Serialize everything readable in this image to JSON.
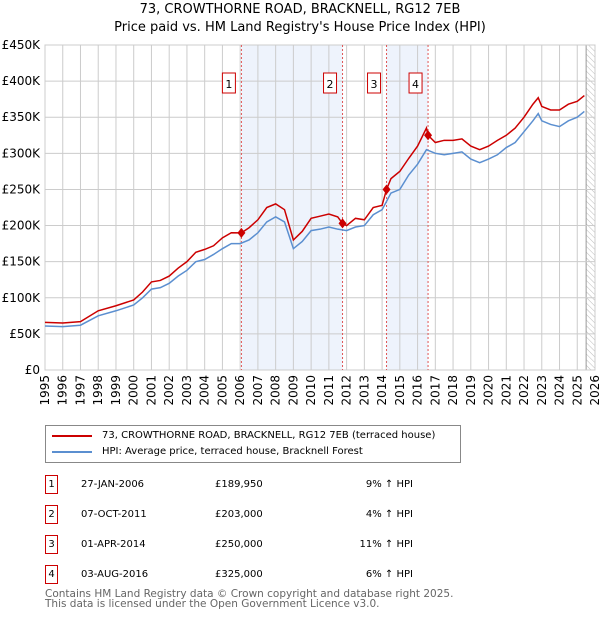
{
  "chart_data": {
    "type": "line",
    "title": "73, CROWTHORNE ROAD, BRACKNELL, RG12 7EB",
    "subtitle": "Price paid vs. HM Land Registry's House Price Index (HPI)",
    "xlim": [
      1995,
      2026
    ],
    "ylim": [
      0,
      450000
    ],
    "yticks": [
      {
        "v": 0,
        "l": "£0"
      },
      {
        "v": 50000,
        "l": "£50K"
      },
      {
        "v": 100000,
        "l": "£100K"
      },
      {
        "v": 150000,
        "l": "£150K"
      },
      {
        "v": 200000,
        "l": "£200K"
      },
      {
        "v": 250000,
        "l": "£250K"
      },
      {
        "v": 300000,
        "l": "£300K"
      },
      {
        "v": 350000,
        "l": "£350K"
      },
      {
        "v": 400000,
        "l": "£400K"
      },
      {
        "v": 450000,
        "l": "£450K"
      }
    ],
    "xticks": [
      "1995",
      "1996",
      "1997",
      "1998",
      "1999",
      "2000",
      "2001",
      "2002",
      "2003",
      "2004",
      "2005",
      "2006",
      "2007",
      "2008",
      "2009",
      "2010",
      "2011",
      "2012",
      "2013",
      "2014",
      "2015",
      "2016",
      "2017",
      "2018",
      "2019",
      "2020",
      "2021",
      "2022",
      "2023",
      "2024",
      "2025",
      "2026"
    ],
    "grid": true,
    "legend_placement": "below",
    "series": [
      {
        "name": "73, CROWTHORNE ROAD, BRACKNELL, RG12 7EB (terraced house)",
        "color": "#cc0000",
        "points": [
          [
            1995,
            66
          ],
          [
            1996,
            65
          ],
          [
            1997,
            67
          ],
          [
            1998,
            82
          ],
          [
            1999,
            89
          ],
          [
            2000,
            97
          ],
          [
            2000.5,
            108
          ],
          [
            2001,
            122
          ],
          [
            2001.5,
            124
          ],
          [
            2002,
            130
          ],
          [
            2002.5,
            141
          ],
          [
            2003,
            150
          ],
          [
            2003.5,
            163
          ],
          [
            2004,
            167
          ],
          [
            2004.5,
            172
          ],
          [
            2005,
            183
          ],
          [
            2005.5,
            190
          ],
          [
            2006.07,
            189.95
          ],
          [
            2006.5,
            197
          ],
          [
            2007,
            208
          ],
          [
            2007.5,
            225
          ],
          [
            2008,
            230
          ],
          [
            2008.5,
            222
          ],
          [
            2009,
            180
          ],
          [
            2009.5,
            192
          ],
          [
            2010,
            210
          ],
          [
            2010.5,
            213
          ],
          [
            2011,
            216
          ],
          [
            2011.5,
            212
          ],
          [
            2011.77,
            203
          ],
          [
            2012,
            200
          ],
          [
            2012.5,
            210
          ],
          [
            2013,
            208
          ],
          [
            2013.5,
            225
          ],
          [
            2014,
            228
          ],
          [
            2014.25,
            250
          ],
          [
            2014.5,
            265
          ],
          [
            2015,
            275
          ],
          [
            2015.5,
            293
          ],
          [
            2016,
            310
          ],
          [
            2016.5,
            335
          ],
          [
            2016.59,
            325
          ],
          [
            2017,
            315
          ],
          [
            2017.5,
            318
          ],
          [
            2018,
            318
          ],
          [
            2018.5,
            320
          ],
          [
            2019,
            310
          ],
          [
            2019.5,
            305
          ],
          [
            2020,
            310
          ],
          [
            2020.5,
            318
          ],
          [
            2021,
            325
          ],
          [
            2021.5,
            335
          ],
          [
            2022,
            350
          ],
          [
            2022.5,
            368
          ],
          [
            2022.8,
            377
          ],
          [
            2023,
            365
          ],
          [
            2023.5,
            360
          ],
          [
            2024,
            360
          ],
          [
            2024.5,
            368
          ],
          [
            2025,
            372
          ],
          [
            2025.4,
            380
          ]
        ]
      },
      {
        "name": "HPI: Average price, terraced house, Bracknell Forest",
        "color": "#5b8fd0",
        "points": [
          [
            1995,
            61
          ],
          [
            1996,
            60
          ],
          [
            1997,
            62
          ],
          [
            1998,
            75
          ],
          [
            1999,
            82
          ],
          [
            2000,
            90
          ],
          [
            2000.5,
            100
          ],
          [
            2001,
            112
          ],
          [
            2001.5,
            114
          ],
          [
            2002,
            120
          ],
          [
            2002.5,
            130
          ],
          [
            2003,
            138
          ],
          [
            2003.5,
            150
          ],
          [
            2004,
            153
          ],
          [
            2004.5,
            160
          ],
          [
            2005,
            168
          ],
          [
            2005.5,
            175
          ],
          [
            2006,
            175
          ],
          [
            2006.5,
            180
          ],
          [
            2007,
            190
          ],
          [
            2007.5,
            205
          ],
          [
            2008,
            212
          ],
          [
            2008.5,
            205
          ],
          [
            2009,
            168
          ],
          [
            2009.5,
            178
          ],
          [
            2010,
            193
          ],
          [
            2010.5,
            195
          ],
          [
            2011,
            198
          ],
          [
            2011.5,
            195
          ],
          [
            2012,
            193
          ],
          [
            2012.5,
            198
          ],
          [
            2013,
            200
          ],
          [
            2013.5,
            215
          ],
          [
            2014,
            222
          ],
          [
            2014.5,
            245
          ],
          [
            2015,
            250
          ],
          [
            2015.5,
            270
          ],
          [
            2016,
            285
          ],
          [
            2016.5,
            305
          ],
          [
            2017,
            300
          ],
          [
            2017.5,
            298
          ],
          [
            2018,
            300
          ],
          [
            2018.5,
            302
          ],
          [
            2019,
            292
          ],
          [
            2019.5,
            287
          ],
          [
            2020,
            292
          ],
          [
            2020.5,
            298
          ],
          [
            2021,
            308
          ],
          [
            2021.5,
            315
          ],
          [
            2022,
            330
          ],
          [
            2022.5,
            345
          ],
          [
            2022.8,
            355
          ],
          [
            2023,
            345
          ],
          [
            2023.5,
            340
          ],
          [
            2024,
            337
          ],
          [
            2024.5,
            345
          ],
          [
            2025,
            350
          ],
          [
            2025.4,
            358
          ]
        ]
      }
    ],
    "sales": [
      {
        "n": "1",
        "x": 2006.07,
        "date": "27-JAN-2006",
        "price": "£189,950",
        "value": 189950,
        "hpi": "9% ↑ HPI"
      },
      {
        "n": "2",
        "x": 2011.77,
        "date": "07-OCT-2011",
        "price": "£203,000",
        "value": 203000,
        "hpi": "4% ↑ HPI"
      },
      {
        "n": "3",
        "x": 2014.25,
        "date": "01-APR-2014",
        "price": "£250,000",
        "value": 250000,
        "hpi": "11% ↑ HPI"
      },
      {
        "n": "4",
        "x": 2016.59,
        "date": "03-AUG-2016",
        "price": "£325,000",
        "value": 325000,
        "hpi": "6% ↑ HPI"
      }
    ],
    "shaded_ranges": [
      [
        2006.07,
        2011.77
      ],
      [
        2014.25,
        2016.59
      ]
    ],
    "forecast_start": 2025.5
  },
  "footer": {
    "line1": "Contains HM Land Registry data © Crown copyright and database right 2025.",
    "line2": "This data is licensed under the Open Government Licence v3.0."
  }
}
